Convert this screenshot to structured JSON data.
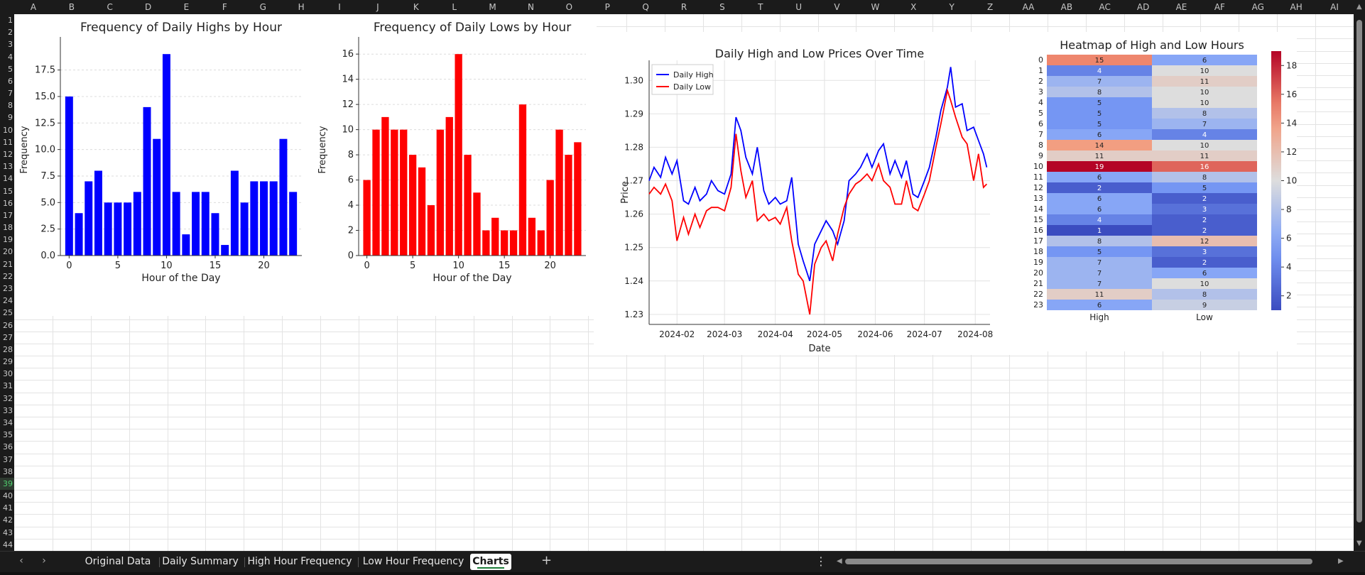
{
  "column_headers": [
    "A",
    "B",
    "C",
    "D",
    "E",
    "F",
    "G",
    "H",
    "I",
    "J",
    "K",
    "L",
    "M",
    "N",
    "O",
    "P",
    "Q",
    "R",
    "S",
    "T",
    "U",
    "V",
    "W",
    "X",
    "Y",
    "Z",
    "AA",
    "AB",
    "AC",
    "AD",
    "AE",
    "AF",
    "AG",
    "AH",
    "AI"
  ],
  "row_headers": [
    "1",
    "2",
    "3",
    "4",
    "5",
    "6",
    "7",
    "8",
    "9",
    "10",
    "11",
    "12",
    "13",
    "14",
    "15",
    "16",
    "17",
    "18",
    "19",
    "20",
    "21",
    "22",
    "23",
    "24",
    "25",
    "26",
    "27",
    "28",
    "29",
    "30",
    "31",
    "32",
    "33",
    "34",
    "35",
    "36",
    "37",
    "38",
    "39",
    "40",
    "41",
    "42",
    "43",
    "44"
  ],
  "selected_row": "39",
  "sheet_tabs": [
    {
      "label": "Original Data",
      "active": false
    },
    {
      "label": "Daily Summary",
      "active": false
    },
    {
      "label": "High Hour Frequency",
      "active": false
    },
    {
      "label": "Low Hour Frequency",
      "active": false
    },
    {
      "label": "Charts",
      "active": true
    }
  ],
  "sheet_controls": {
    "prev_icon": "chevron-left-icon",
    "next_icon": "chevron-right-icon",
    "add_icon": "plus-icon",
    "more_icon": "more-vertical-icon",
    "add_glyph": "+",
    "more_glyph": "⋮",
    "prev_glyph": "‹",
    "next_glyph": "›"
  },
  "colors": {
    "high": "#0000ff",
    "low": "#ff0000",
    "accent": "#1e7e3a"
  },
  "chart_data": [
    {
      "type": "bar",
      "title": "Frequency of Daily Highs by Hour",
      "xlabel": "Hour of the Day",
      "ylabel": "Frequency",
      "x": [
        0,
        1,
        2,
        3,
        4,
        5,
        6,
        7,
        8,
        9,
        10,
        11,
        12,
        13,
        14,
        15,
        16,
        17,
        18,
        19,
        20,
        21,
        22,
        23
      ],
      "values": [
        15,
        4,
        7,
        8,
        5,
        5,
        5,
        6,
        14,
        11,
        19,
        6,
        2,
        6,
        6,
        4,
        1,
        8,
        5,
        7,
        7,
        7,
        11,
        6
      ],
      "xticks": [
        "0",
        "5",
        "10",
        "15",
        "20"
      ],
      "yticks": [
        "0.0",
        "2.5",
        "5.0",
        "7.5",
        "10.0",
        "12.5",
        "15.0",
        "17.5"
      ],
      "ylim": [
        0,
        19.95
      ],
      "color": "#0000ff"
    },
    {
      "type": "bar",
      "title": "Frequency of Daily Lows by Hour",
      "xlabel": "Hour of the Day",
      "ylabel": "Frequency",
      "x": [
        0,
        1,
        2,
        3,
        4,
        5,
        6,
        7,
        8,
        9,
        10,
        11,
        12,
        13,
        14,
        15,
        16,
        17,
        18,
        19,
        20,
        21,
        22,
        23
      ],
      "values": [
        6,
        10,
        11,
        10,
        10,
        8,
        7,
        4,
        10,
        11,
        16,
        8,
        5,
        2,
        3,
        2,
        2,
        12,
        3,
        2,
        6,
        10,
        8,
        9
      ],
      "xticks": [
        "0",
        "5",
        "10",
        "15",
        "20"
      ],
      "yticks": [
        "0",
        "2",
        "4",
        "6",
        "8",
        "10",
        "12",
        "14",
        "16"
      ],
      "ylim": [
        0,
        16.8
      ],
      "color": "#ff0000"
    },
    {
      "type": "line",
      "title": "Daily High and Low Prices Over Time",
      "xlabel": "Date",
      "ylabel": "Price",
      "x_start": "2024-01-15",
      "x_end": "2024-08-10",
      "xticks": [
        "2024-02",
        "2024-03",
        "2024-04",
        "2024-05",
        "2024-06",
        "2024-07",
        "2024-08"
      ],
      "yticks": [
        "1.23",
        "1.24",
        "1.25",
        "1.26",
        "1.27",
        "1.28",
        "1.29",
        "1.30"
      ],
      "ylim": [
        1.227,
        1.306
      ],
      "legend": "top-left",
      "grid": true,
      "series": [
        {
          "name": "Daily High",
          "color": "#0000ff",
          "points": [
            [
              "2024-01-15",
              1.27
            ],
            [
              "2024-01-18",
              1.274
            ],
            [
              "2024-01-22",
              1.271
            ],
            [
              "2024-01-25",
              1.277
            ],
            [
              "2024-01-29",
              1.272
            ],
            [
              "2024-02-01",
              1.276
            ],
            [
              "2024-02-05",
              1.264
            ],
            [
              "2024-02-08",
              1.263
            ],
            [
              "2024-02-12",
              1.268
            ],
            [
              "2024-02-15",
              1.264
            ],
            [
              "2024-02-19",
              1.266
            ],
            [
              "2024-02-22",
              1.27
            ],
            [
              "2024-02-26",
              1.267
            ],
            [
              "2024-03-01",
              1.266
            ],
            [
              "2024-03-05",
              1.272
            ],
            [
              "2024-03-08",
              1.289
            ],
            [
              "2024-03-11",
              1.285
            ],
            [
              "2024-03-14",
              1.277
            ],
            [
              "2024-03-18",
              1.272
            ],
            [
              "2024-03-21",
              1.28
            ],
            [
              "2024-03-25",
              1.267
            ],
            [
              "2024-03-28",
              1.263
            ],
            [
              "2024-04-01",
              1.265
            ],
            [
              "2024-04-04",
              1.263
            ],
            [
              "2024-04-08",
              1.264
            ],
            [
              "2024-04-11",
              1.271
            ],
            [
              "2024-04-15",
              1.251
            ],
            [
              "2024-04-18",
              1.246
            ],
            [
              "2024-04-22",
              1.24
            ],
            [
              "2024-04-25",
              1.251
            ],
            [
              "2024-04-29",
              1.255
            ],
            [
              "2024-05-02",
              1.258
            ],
            [
              "2024-05-06",
              1.255
            ],
            [
              "2024-05-09",
              1.251
            ],
            [
              "2024-05-13",
              1.258
            ],
            [
              "2024-05-16",
              1.27
            ],
            [
              "2024-05-20",
              1.272
            ],
            [
              "2024-05-23",
              1.274
            ],
            [
              "2024-05-27",
              1.278
            ],
            [
              "2024-05-30",
              1.274
            ],
            [
              "2024-06-03",
              1.279
            ],
            [
              "2024-06-06",
              1.281
            ],
            [
              "2024-06-10",
              1.272
            ],
            [
              "2024-06-13",
              1.276
            ],
            [
              "2024-06-17",
              1.271
            ],
            [
              "2024-06-20",
              1.276
            ],
            [
              "2024-06-24",
              1.266
            ],
            [
              "2024-06-27",
              1.265
            ],
            [
              "2024-07-01",
              1.27
            ],
            [
              "2024-07-04",
              1.274
            ],
            [
              "2024-07-08",
              1.283
            ],
            [
              "2024-07-11",
              1.291
            ],
            [
              "2024-07-15",
              1.298
            ],
            [
              "2024-07-17",
              1.304
            ],
            [
              "2024-07-20",
              1.292
            ],
            [
              "2024-07-24",
              1.293
            ],
            [
              "2024-07-27",
              1.285
            ],
            [
              "2024-07-31",
              1.286
            ],
            [
              "2024-08-03",
              1.282
            ],
            [
              "2024-08-06",
              1.278
            ],
            [
              "2024-08-08",
              1.274
            ]
          ]
        },
        {
          "name": "Daily Low",
          "color": "#ff0000",
          "points": [
            [
              "2024-01-15",
              1.266
            ],
            [
              "2024-01-18",
              1.268
            ],
            [
              "2024-01-22",
              1.266
            ],
            [
              "2024-01-25",
              1.269
            ],
            [
              "2024-01-29",
              1.264
            ],
            [
              "2024-02-01",
              1.252
            ],
            [
              "2024-02-05",
              1.259
            ],
            [
              "2024-02-08",
              1.254
            ],
            [
              "2024-02-12",
              1.26
            ],
            [
              "2024-02-15",
              1.256
            ],
            [
              "2024-02-19",
              1.261
            ],
            [
              "2024-02-22",
              1.262
            ],
            [
              "2024-02-26",
              1.262
            ],
            [
              "2024-03-01",
              1.261
            ],
            [
              "2024-03-05",
              1.268
            ],
            [
              "2024-03-08",
              1.284
            ],
            [
              "2024-03-11",
              1.273
            ],
            [
              "2024-03-14",
              1.265
            ],
            [
              "2024-03-18",
              1.27
            ],
            [
              "2024-03-21",
              1.258
            ],
            [
              "2024-03-25",
              1.26
            ],
            [
              "2024-03-28",
              1.258
            ],
            [
              "2024-04-01",
              1.259
            ],
            [
              "2024-04-04",
              1.257
            ],
            [
              "2024-04-08",
              1.262
            ],
            [
              "2024-04-11",
              1.252
            ],
            [
              "2024-04-15",
              1.242
            ],
            [
              "2024-04-18",
              1.24
            ],
            [
              "2024-04-22",
              1.23
            ],
            [
              "2024-04-25",
              1.245
            ],
            [
              "2024-04-29",
              1.25
            ],
            [
              "2024-05-02",
              1.252
            ],
            [
              "2024-05-06",
              1.246
            ],
            [
              "2024-05-09",
              1.254
            ],
            [
              "2024-05-13",
              1.262
            ],
            [
              "2024-05-16",
              1.266
            ],
            [
              "2024-05-20",
              1.269
            ],
            [
              "2024-05-23",
              1.27
            ],
            [
              "2024-05-27",
              1.272
            ],
            [
              "2024-05-30",
              1.27
            ],
            [
              "2024-06-03",
              1.275
            ],
            [
              "2024-06-06",
              1.27
            ],
            [
              "2024-06-10",
              1.268
            ],
            [
              "2024-06-13",
              1.263
            ],
            [
              "2024-06-17",
              1.263
            ],
            [
              "2024-06-20",
              1.27
            ],
            [
              "2024-06-24",
              1.262
            ],
            [
              "2024-06-27",
              1.261
            ],
            [
              "2024-07-01",
              1.266
            ],
            [
              "2024-07-04",
              1.27
            ],
            [
              "2024-07-08",
              1.28
            ],
            [
              "2024-07-11",
              1.287
            ],
            [
              "2024-07-15",
              1.297
            ],
            [
              "2024-07-17",
              1.294
            ],
            [
              "2024-07-20",
              1.289
            ],
            [
              "2024-07-24",
              1.283
            ],
            [
              "2024-07-27",
              1.281
            ],
            [
              "2024-07-31",
              1.27
            ],
            [
              "2024-08-03",
              1.278
            ],
            [
              "2024-08-06",
              1.268
            ],
            [
              "2024-08-08",
              1.269
            ]
          ]
        }
      ]
    },
    {
      "type": "heatmap",
      "title": "Heatmap of High and Low Hours",
      "rows": [
        "0",
        "1",
        "2",
        "3",
        "4",
        "5",
        "6",
        "7",
        "8",
        "9",
        "10",
        "11",
        "12",
        "13",
        "14",
        "15",
        "16",
        "17",
        "18",
        "19",
        "20",
        "21",
        "22",
        "23"
      ],
      "columns": [
        "High",
        "Low"
      ],
      "values": [
        [
          15,
          6
        ],
        [
          4,
          10
        ],
        [
          7,
          11
        ],
        [
          8,
          10
        ],
        [
          5,
          10
        ],
        [
          5,
          8
        ],
        [
          5,
          7
        ],
        [
          6,
          4
        ],
        [
          14,
          10
        ],
        [
          11,
          11
        ],
        [
          19,
          16
        ],
        [
          6,
          8
        ],
        [
          2,
          5
        ],
        [
          6,
          2
        ],
        [
          6,
          3
        ],
        [
          4,
          2
        ],
        [
          1,
          2
        ],
        [
          8,
          12
        ],
        [
          5,
          3
        ],
        [
          7,
          2
        ],
        [
          7,
          6
        ],
        [
          7,
          10
        ],
        [
          11,
          8
        ],
        [
          6,
          9
        ]
      ],
      "vmin": 1,
      "vmax": 19,
      "colorbar_ticks": [
        "2",
        "4",
        "6",
        "8",
        "10",
        "12",
        "14",
        "16",
        "18"
      ],
      "colormap": "coolwarm"
    }
  ]
}
